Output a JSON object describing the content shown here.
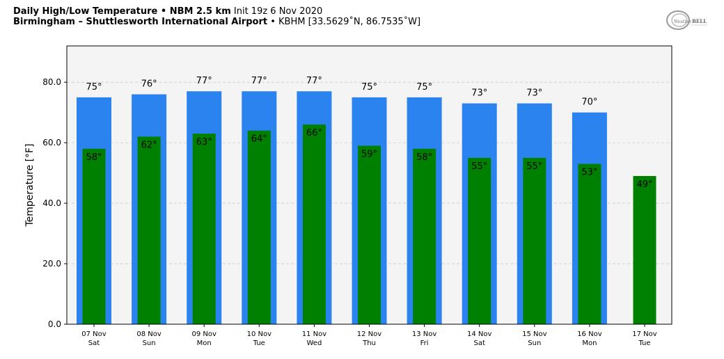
{
  "header": {
    "line1_bold": "Daily High/Low Temperature • NBM 2.5 km",
    "line1_rest": "Init 19z 6 Nov 2020",
    "line2_bold": "Birmingham – Shuttlesworth International Airport",
    "line2_rest": "• KBHM [33.5629˚N, 86.7535˚W]"
  },
  "logo": {
    "text_light": "Weather",
    "text_bold": "BELL",
    "icon": "weatherbell-logo"
  },
  "colors": {
    "high_bar": "#2b83f0",
    "low_bar": "#008000",
    "plot_bg": "#f4f4f4",
    "grid": "#cccccc"
  },
  "chart_data": {
    "type": "bar",
    "ylabel": "Temperature [°F]",
    "ylim": [
      0,
      92
    ],
    "yticks": [
      0,
      20,
      40,
      60,
      80
    ],
    "ytick_labels": [
      "0.0",
      "20.0",
      "40.0",
      "60.0",
      "80.0"
    ],
    "grid": true,
    "categories": [
      {
        "date": "07 Nov",
        "day": "Sat"
      },
      {
        "date": "08 Nov",
        "day": "Sun"
      },
      {
        "date": "09 Nov",
        "day": "Mon"
      },
      {
        "date": "10 Nov",
        "day": "Tue"
      },
      {
        "date": "11 Nov",
        "day": "Wed"
      },
      {
        "date": "12 Nov",
        "day": "Thu"
      },
      {
        "date": "13 Nov",
        "day": "Fri"
      },
      {
        "date": "14 Nov",
        "day": "Sat"
      },
      {
        "date": "15 Nov",
        "day": "Sun"
      },
      {
        "date": "16 Nov",
        "day": "Mon"
      },
      {
        "date": "17 Nov",
        "day": "Tue"
      }
    ],
    "series": [
      {
        "values": [
          75,
          76,
          77,
          77,
          77,
          75,
          75,
          73,
          73,
          70,
          null
        ],
        "labels": [
          "75°",
          "76°",
          "77°",
          "77°",
          "77°",
          "75°",
          "75°",
          "73°",
          "73°",
          "70°",
          ""
        ]
      },
      {
        "values": [
          58,
          62,
          63,
          64,
          66,
          59,
          58,
          55,
          55,
          53,
          49
        ],
        "labels": [
          "58°",
          "62°",
          "63°",
          "64°",
          "66°",
          "59°",
          "58°",
          "55°",
          "55°",
          "53°",
          "49°"
        ]
      }
    ]
  }
}
